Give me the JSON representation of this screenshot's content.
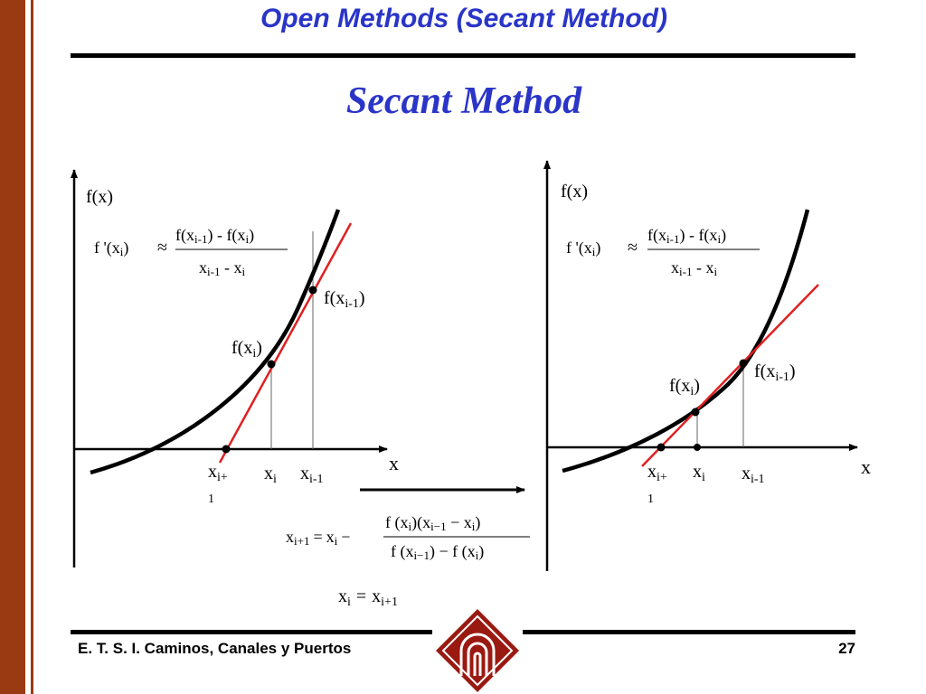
{
  "header": {
    "title": "Open Methods (Secant Method)"
  },
  "slide": {
    "subtitle": "Secant Method"
  },
  "labels": {
    "fx": "f(x)",
    "x_axis": "x",
    "f": "f",
    "x": "x",
    "open_paren": "(",
    "close_paren": ")",
    "prime_lhs": "f '(x",
    "approx": "≈",
    "fxi1": "f(x",
    "minus_fx": ") - f(x",
    "minus_x": " - x",
    "sub_i": "i",
    "sub_im1": "i-1",
    "sub_ip1": "i+1",
    "sub_ip": "i+",
    "sub_one": "1",
    "eq_sign": "=",
    "minus_sign": "−",
    "sub_im1_formula": "i−1",
    "update_lhs": "x",
    "update_eq": "="
  },
  "formula": {
    "num_1": "f (x",
    "num_2": ")(x",
    "num_3": " − x",
    "num_4": ")",
    "den_1": "f (x",
    "den_2": ") − f (x",
    "den_3": ")"
  },
  "footer": {
    "left": "E. T. S. I. Caminos, Canales y Puertos",
    "page": "27"
  },
  "colors": {
    "accent": "#2a35c8",
    "bar": "#9a3a12",
    "secant": "#e02020",
    "logo": "#9a1a12"
  },
  "icons": {
    "logo": "university-seal-icon",
    "arrow": "right-arrow-icon"
  }
}
